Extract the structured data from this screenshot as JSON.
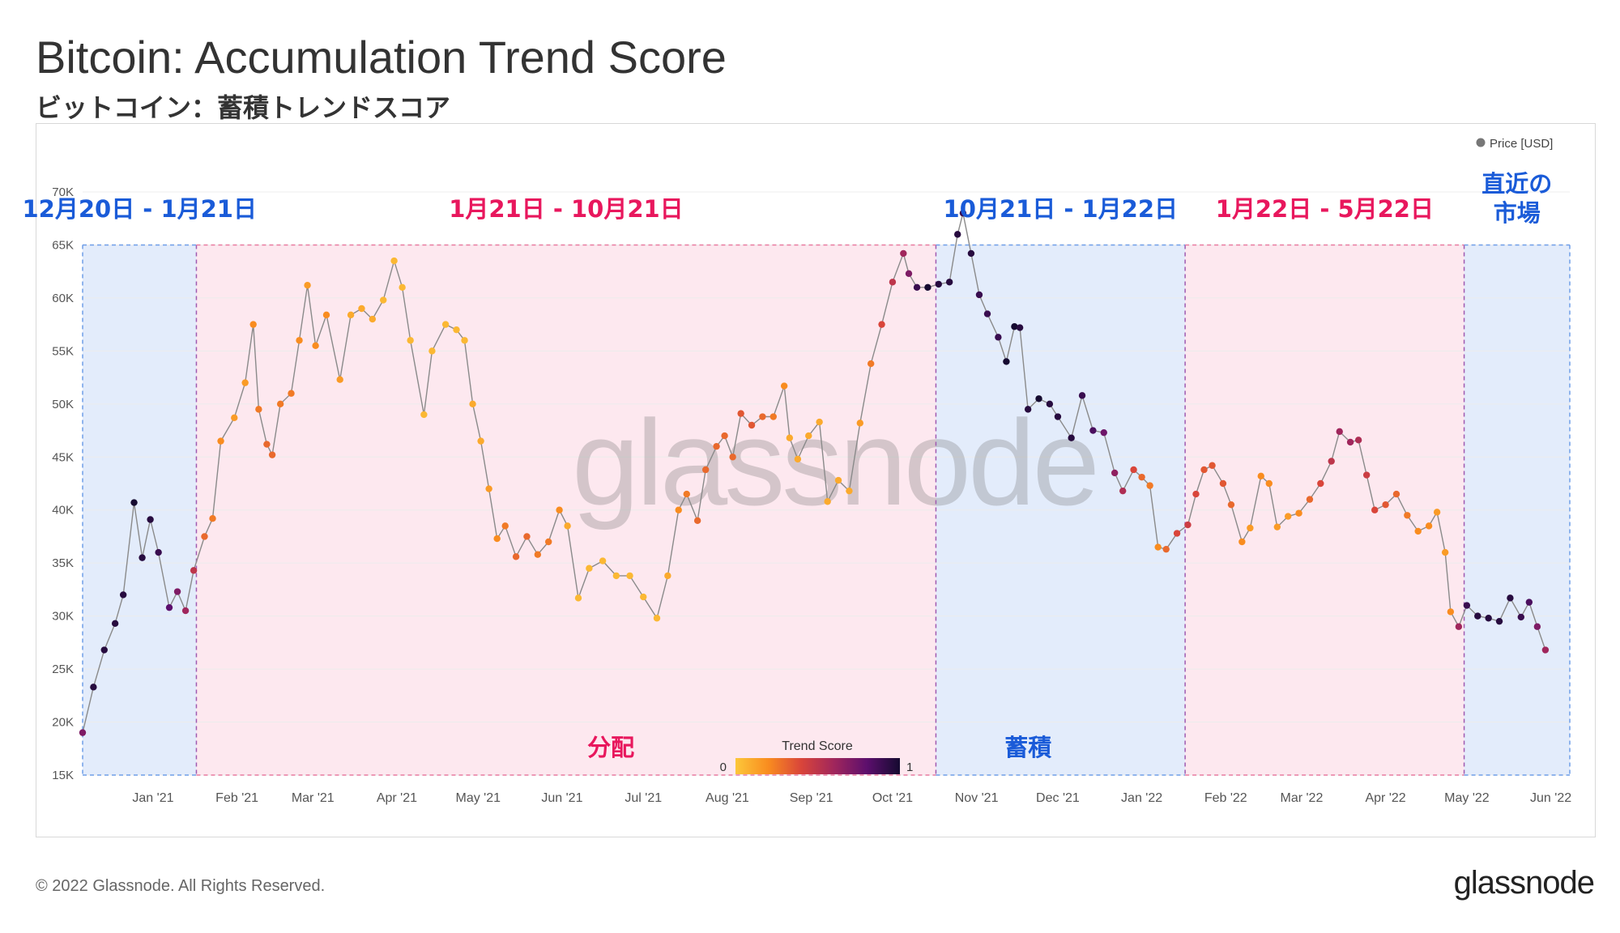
{
  "header": {
    "title": "Bitcoin: Accumulation Trend Score",
    "subtitle": "ビットコイン：蓄積トレンドスコア"
  },
  "footer": {
    "copyright": "© 2022 Glassnode. All Rights Reserved.",
    "brand": "glassnode"
  },
  "chart_data": {
    "type": "scatter",
    "title": "",
    "xlabel": "",
    "ylabel": "",
    "watermark": "glassnode",
    "y_ticks": [
      "15K",
      "20K",
      "25K",
      "30K",
      "35K",
      "40K",
      "45K",
      "50K",
      "55K",
      "60K",
      "65K",
      "70K"
    ],
    "ylim": [
      15000,
      70000
    ],
    "x_ticks": [
      "Jan '21",
      "Feb '21",
      "Mar '21",
      "Apr '21",
      "May '21",
      "Jun '21",
      "Jul '21",
      "Aug '21",
      "Sep '21",
      "Oct '21",
      "Nov '21",
      "Dec '21",
      "Jan '22",
      "Feb '22",
      "Mar '22",
      "Apr '22",
      "May '22",
      "Jun '22"
    ],
    "xlim": [
      "2020-12-20",
      "2022-06-22"
    ],
    "grid": true,
    "legend": {
      "position": "top-right",
      "entries": [
        "Price [USD]"
      ]
    },
    "colorbar": {
      "title": "Trend Score",
      "min_label": "0",
      "max_label": "1",
      "colors": [
        "#fcc73a",
        "#f98c1f",
        "#d9453a",
        "#a0265c",
        "#5c0f6d",
        "#150a30"
      ]
    },
    "regions": [
      {
        "label": "12月20日 - 1月21日",
        "start": "2020-12-20",
        "end": "2021-01-31",
        "kind": "accumulation"
      },
      {
        "label": "1月21日 - 10月21日",
        "start": "2021-01-31",
        "end": "2021-10-31",
        "kind": "distribution",
        "bottom_label": "分配"
      },
      {
        "label": "10月21日 - 1月22日",
        "start": "2021-10-31",
        "end": "2022-01-31",
        "kind": "accumulation",
        "bottom_label": "蓄積"
      },
      {
        "label": "1月22日 - 5月22日",
        "start": "2022-01-31",
        "end": "2022-05-14",
        "kind": "distribution"
      },
      {
        "label": "直近の\n市場",
        "start": "2022-05-14",
        "end": "2022-06-22",
        "kind": "accumulation"
      }
    ],
    "region_colors": {
      "accumulation": "#e3ecfb",
      "distribution": "#fde8ef",
      "accumulation_label": "#1a5bd8",
      "distribution_label": "#e8175d"
    },
    "series": [
      {
        "name": "Price [USD]",
        "points": [
          [
            "2020-12-20",
            19000,
            0.7
          ],
          [
            "2020-12-24",
            23300,
            0.95
          ],
          [
            "2020-12-28",
            26800,
            0.95
          ],
          [
            "2021-01-01",
            29300,
            0.95
          ],
          [
            "2021-01-04",
            32000,
            0.95
          ],
          [
            "2021-01-08",
            40700,
            1.0
          ],
          [
            "2021-01-11",
            35500,
            0.95
          ],
          [
            "2021-01-14",
            39100,
            0.95
          ],
          [
            "2021-01-17",
            36000,
            0.9
          ],
          [
            "2021-01-21",
            30800,
            0.8
          ],
          [
            "2021-01-24",
            32300,
            0.7
          ],
          [
            "2021-01-27",
            30500,
            0.6
          ],
          [
            "2021-01-30",
            34300,
            0.5
          ],
          [
            "2021-02-03",
            37500,
            0.3
          ],
          [
            "2021-02-06",
            39200,
            0.25
          ],
          [
            "2021-02-09",
            46500,
            0.2
          ],
          [
            "2021-02-14",
            48700,
            0.15
          ],
          [
            "2021-02-18",
            52000,
            0.15
          ],
          [
            "2021-02-21",
            57500,
            0.2
          ],
          [
            "2021-02-23",
            49500,
            0.25
          ],
          [
            "2021-02-26",
            46200,
            0.3
          ],
          [
            "2021-02-28",
            45200,
            0.3
          ],
          [
            "2021-03-03",
            50000,
            0.25
          ],
          [
            "2021-03-07",
            51000,
            0.25
          ],
          [
            "2021-03-10",
            56000,
            0.2
          ],
          [
            "2021-03-13",
            61200,
            0.15
          ],
          [
            "2021-03-16",
            55500,
            0.2
          ],
          [
            "2021-03-20",
            58400,
            0.2
          ],
          [
            "2021-03-25",
            52300,
            0.15
          ],
          [
            "2021-03-29",
            58400,
            0.1
          ],
          [
            "2021-04-02",
            59000,
            0.1
          ],
          [
            "2021-04-06",
            58000,
            0.1
          ],
          [
            "2021-04-10",
            59800,
            0.05
          ],
          [
            "2021-04-14",
            63500,
            0.05
          ],
          [
            "2021-04-17",
            61000,
            0.05
          ],
          [
            "2021-04-20",
            56000,
            0.05
          ],
          [
            "2021-04-25",
            49000,
            0.05
          ],
          [
            "2021-04-28",
            55000,
            0.05
          ],
          [
            "2021-05-03",
            57500,
            0.05
          ],
          [
            "2021-05-07",
            57000,
            0.05
          ],
          [
            "2021-05-10",
            56000,
            0.05
          ],
          [
            "2021-05-13",
            50000,
            0.1
          ],
          [
            "2021-05-16",
            46500,
            0.1
          ],
          [
            "2021-05-19",
            42000,
            0.15
          ],
          [
            "2021-05-22",
            37300,
            0.2
          ],
          [
            "2021-05-25",
            38500,
            0.25
          ],
          [
            "2021-05-29",
            35600,
            0.3
          ],
          [
            "2021-06-02",
            37500,
            0.3
          ],
          [
            "2021-06-06",
            35800,
            0.25
          ],
          [
            "2021-06-10",
            37000,
            0.25
          ],
          [
            "2021-06-14",
            40000,
            0.2
          ],
          [
            "2021-06-17",
            38500,
            0.1
          ],
          [
            "2021-06-21",
            31700,
            0.05
          ],
          [
            "2021-06-25",
            34500,
            0.05
          ],
          [
            "2021-06-30",
            35200,
            0.05
          ],
          [
            "2021-07-05",
            33800,
            0.05
          ],
          [
            "2021-07-10",
            33800,
            0.05
          ],
          [
            "2021-07-15",
            31800,
            0.05
          ],
          [
            "2021-07-20",
            29800,
            0.05
          ],
          [
            "2021-07-24",
            33800,
            0.1
          ],
          [
            "2021-07-28",
            40000,
            0.2
          ],
          [
            "2021-07-31",
            41500,
            0.25
          ],
          [
            "2021-08-04",
            39000,
            0.3
          ],
          [
            "2021-08-07",
            43800,
            0.3
          ],
          [
            "2021-08-11",
            46000,
            0.3
          ],
          [
            "2021-08-14",
            47000,
            0.3
          ],
          [
            "2021-08-17",
            45000,
            0.3
          ],
          [
            "2021-08-20",
            49100,
            0.35
          ],
          [
            "2021-08-24",
            48000,
            0.35
          ],
          [
            "2021-08-28",
            48800,
            0.3
          ],
          [
            "2021-09-01",
            48800,
            0.25
          ],
          [
            "2021-09-05",
            51700,
            0.2
          ],
          [
            "2021-09-07",
            46800,
            0.1
          ],
          [
            "2021-09-10",
            44800,
            0.1
          ],
          [
            "2021-09-14",
            47000,
            0.1
          ],
          [
            "2021-09-18",
            48300,
            0.1
          ],
          [
            "2021-09-21",
            40800,
            0.1
          ],
          [
            "2021-09-25",
            42800,
            0.1
          ],
          [
            "2021-09-29",
            41800,
            0.1
          ],
          [
            "2021-10-03",
            48200,
            0.15
          ],
          [
            "2021-10-07",
            53800,
            0.25
          ],
          [
            "2021-10-11",
            57500,
            0.4
          ],
          [
            "2021-10-15",
            61500,
            0.5
          ],
          [
            "2021-10-19",
            64200,
            0.6
          ],
          [
            "2021-10-21",
            62300,
            0.7
          ],
          [
            "2021-10-24",
            61000,
            0.9
          ],
          [
            "2021-10-28",
            61000,
            1.0
          ],
          [
            "2021-11-01",
            61300,
            0.95
          ],
          [
            "2021-11-05",
            61500,
            0.95
          ],
          [
            "2021-11-08",
            66000,
            0.95
          ],
          [
            "2021-11-10",
            68000,
            0.9
          ],
          [
            "2021-11-13",
            64200,
            0.95
          ],
          [
            "2021-11-16",
            60300,
            0.9
          ],
          [
            "2021-11-19",
            58500,
            0.9
          ],
          [
            "2021-11-23",
            56300,
            0.9
          ],
          [
            "2021-11-26",
            54000,
            1.0
          ],
          [
            "2021-11-29",
            57300,
            1.0
          ],
          [
            "2021-12-01",
            57200,
            0.95
          ],
          [
            "2021-12-04",
            49500,
            0.95
          ],
          [
            "2021-12-08",
            50500,
            1.0
          ],
          [
            "2021-12-12",
            50000,
            0.95
          ],
          [
            "2021-12-15",
            48800,
            0.95
          ],
          [
            "2021-12-20",
            46800,
            0.95
          ],
          [
            "2021-12-24",
            50800,
            0.9
          ],
          [
            "2021-12-28",
            47500,
            0.85
          ],
          [
            "2022-01-01",
            47300,
            0.75
          ],
          [
            "2022-01-05",
            43500,
            0.65
          ],
          [
            "2022-01-08",
            41800,
            0.55
          ],
          [
            "2022-01-12",
            43800,
            0.4
          ],
          [
            "2022-01-15",
            43100,
            0.3
          ],
          [
            "2022-01-18",
            42300,
            0.25
          ],
          [
            "2022-01-21",
            36500,
            0.2
          ],
          [
            "2022-01-24",
            36300,
            0.3
          ],
          [
            "2022-01-28",
            37800,
            0.4
          ],
          [
            "2022-02-01",
            38600,
            0.45
          ],
          [
            "2022-02-04",
            41500,
            0.4
          ],
          [
            "2022-02-07",
            43800,
            0.35
          ],
          [
            "2022-02-10",
            44200,
            0.35
          ],
          [
            "2022-02-14",
            42500,
            0.35
          ],
          [
            "2022-02-17",
            40500,
            0.3
          ],
          [
            "2022-02-21",
            37000,
            0.2
          ],
          [
            "2022-02-24",
            38300,
            0.15
          ],
          [
            "2022-02-28",
            43200,
            0.2
          ],
          [
            "2022-03-03",
            42500,
            0.2
          ],
          [
            "2022-03-06",
            38400,
            0.15
          ],
          [
            "2022-03-10",
            39400,
            0.15
          ],
          [
            "2022-03-14",
            39700,
            0.2
          ],
          [
            "2022-03-18",
            41000,
            0.3
          ],
          [
            "2022-03-22",
            42500,
            0.4
          ],
          [
            "2022-03-26",
            44600,
            0.5
          ],
          [
            "2022-03-29",
            47400,
            0.6
          ],
          [
            "2022-04-02",
            46400,
            0.6
          ],
          [
            "2022-04-05",
            46600,
            0.55
          ],
          [
            "2022-04-08",
            43300,
            0.45
          ],
          [
            "2022-04-11",
            40000,
            0.4
          ],
          [
            "2022-04-15",
            40500,
            0.35
          ],
          [
            "2022-04-19",
            41500,
            0.3
          ],
          [
            "2022-04-23",
            39500,
            0.25
          ],
          [
            "2022-04-27",
            38000,
            0.2
          ],
          [
            "2022-05-01",
            38500,
            0.2
          ],
          [
            "2022-05-04",
            39800,
            0.15
          ],
          [
            "2022-05-07",
            36000,
            0.15
          ],
          [
            "2022-05-09",
            30400,
            0.2
          ],
          [
            "2022-05-12",
            29000,
            0.6
          ],
          [
            "2022-05-15",
            31000,
            0.9
          ],
          [
            "2022-05-19",
            30000,
            0.95
          ],
          [
            "2022-05-23",
            29800,
            0.95
          ],
          [
            "2022-05-27",
            29500,
            0.95
          ],
          [
            "2022-05-31",
            31700,
            0.95
          ],
          [
            "2022-06-04",
            29900,
            0.9
          ],
          [
            "2022-06-07",
            31300,
            0.85
          ],
          [
            "2022-06-10",
            29000,
            0.7
          ],
          [
            "2022-06-13",
            26800,
            0.6
          ]
        ]
      }
    ]
  }
}
